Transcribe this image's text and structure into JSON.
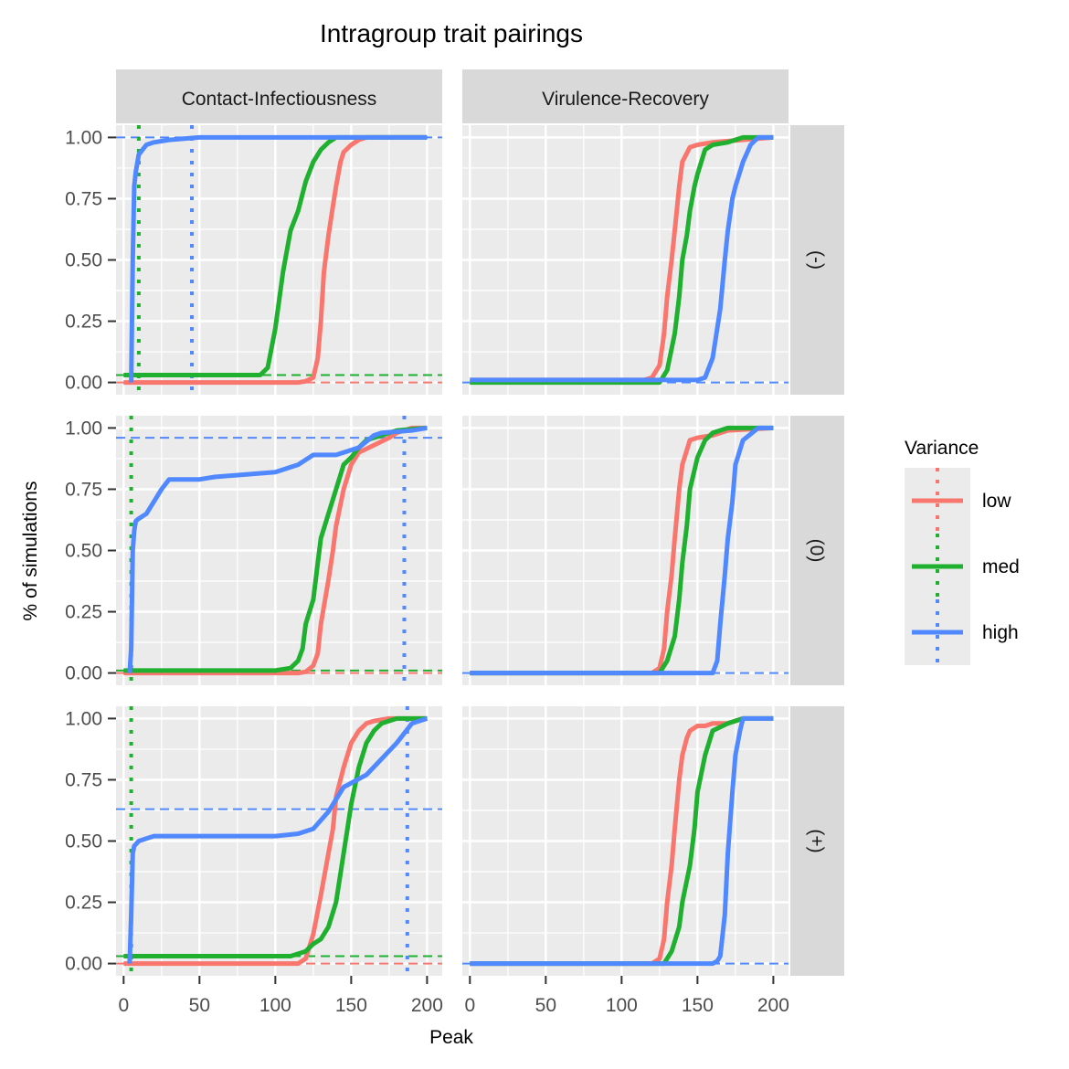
{
  "chart_data": {
    "type": "line",
    "title": "Intragroup trait pairings",
    "xlabel": "Peak",
    "ylabel": "% of simulations",
    "xlim": [
      -5,
      210
    ],
    "ylim": [
      -0.05,
      1.05
    ],
    "x_ticks": [
      0,
      50,
      100,
      150,
      200
    ],
    "x_tick_labels": [
      "0",
      "50",
      "100",
      "150",
      "200"
    ],
    "y_ticks": [
      0,
      0.25,
      0.5,
      0.75,
      1
    ],
    "y_tick_labels": [
      "0.00",
      "0.25",
      "0.50",
      "0.75",
      "1.00"
    ],
    "facet_columns": [
      "Contact-Infectiousness",
      "Virulence-Recovery"
    ],
    "facet_rows": [
      "(-)",
      "(0)",
      "(+)"
    ],
    "legend": {
      "title": "Variance",
      "position": "right",
      "entries": [
        {
          "key": "low",
          "label": "low",
          "color": "#F8766D"
        },
        {
          "key": "med",
          "label": "med",
          "color": "#1EB02E"
        },
        {
          "key": "high",
          "label": "high",
          "color": "#5088FF"
        }
      ]
    },
    "panels": [
      {
        "row": "(-)",
        "column": "Contact-Infectiousness",
        "series": [
          {
            "name": "low",
            "x": [
              0,
              115,
              120,
              125,
              128,
              130,
              132,
              135,
              138,
              140,
              143,
              145,
              150,
              155,
              160,
              200
            ],
            "y": [
              0,
              0,
              0.005,
              0.02,
              0.1,
              0.25,
              0.45,
              0.6,
              0.72,
              0.8,
              0.9,
              0.94,
              0.97,
              0.99,
              1,
              1
            ]
          },
          {
            "name": "med",
            "x": [
              0,
              10,
              90,
              95,
              100,
              105,
              110,
              115,
              120,
              125,
              130,
              135,
              140,
              150,
              200
            ],
            "y": [
              0.03,
              0.03,
              0.03,
              0.06,
              0.22,
              0.45,
              0.62,
              0.7,
              0.82,
              0.9,
              0.95,
              0.98,
              1,
              1,
              1
            ]
          },
          {
            "name": "high",
            "x": [
              5,
              6,
              7,
              8,
              10,
              15,
              20,
              30,
              50,
              100,
              200
            ],
            "y": [
              0,
              0.5,
              0.8,
              0.86,
              0.93,
              0.97,
              0.98,
              0.99,
              1,
              1,
              1
            ]
          }
        ],
        "hlines": [
          {
            "series": "low",
            "y": 0
          },
          {
            "series": "med",
            "y": 0.03
          },
          {
            "series": "high",
            "y": 1
          }
        ],
        "vlines": [
          {
            "series": "med",
            "x": 10
          },
          {
            "series": "high",
            "x": 45
          }
        ]
      },
      {
        "row": "(-)",
        "column": "Virulence-Recovery",
        "series": [
          {
            "name": "low",
            "x": [
              0,
              115,
              120,
              125,
              128,
              130,
              133,
              135,
              138,
              140,
              145,
              150,
              160,
              200
            ],
            "y": [
              0.01,
              0.01,
              0.02,
              0.07,
              0.2,
              0.35,
              0.5,
              0.62,
              0.8,
              0.9,
              0.96,
              0.97,
              0.98,
              1
            ]
          },
          {
            "name": "med",
            "x": [
              0,
              125,
              130,
              135,
              138,
              140,
              143,
              145,
              148,
              150,
              155,
              160,
              170,
              180,
              200
            ],
            "y": [
              0,
              0,
              0.05,
              0.2,
              0.35,
              0.5,
              0.6,
              0.7,
              0.8,
              0.85,
              0.95,
              0.97,
              0.98,
              1,
              1
            ]
          },
          {
            "name": "high",
            "x": [
              0,
              150,
              155,
              160,
              165,
              168,
              170,
              173,
              175,
              180,
              185,
              190,
              200
            ],
            "y": [
              0.01,
              0.01,
              0.02,
              0.1,
              0.3,
              0.5,
              0.62,
              0.75,
              0.8,
              0.9,
              0.97,
              1,
              1
            ]
          }
        ],
        "hlines": [
          {
            "series": "high",
            "y": 0
          }
        ],
        "vlines": []
      },
      {
        "row": "(0)",
        "column": "Contact-Infectiousness",
        "series": [
          {
            "name": "low",
            "x": [
              0,
              115,
              120,
              125,
              128,
              130,
              135,
              138,
              140,
              145,
              150,
              155,
              165,
              175,
              180,
              190,
              200
            ],
            "y": [
              0,
              0,
              0.005,
              0.03,
              0.08,
              0.2,
              0.38,
              0.5,
              0.6,
              0.75,
              0.85,
              0.9,
              0.93,
              0.96,
              0.98,
              1,
              1
            ]
          },
          {
            "name": "med",
            "x": [
              0,
              100,
              110,
              115,
              118,
              120,
              125,
              128,
              130,
              135,
              140,
              145,
              150,
              155,
              160,
              170,
              180,
              200
            ],
            "y": [
              0.01,
              0.01,
              0.02,
              0.05,
              0.1,
              0.2,
              0.3,
              0.45,
              0.55,
              0.65,
              0.75,
              0.85,
              0.88,
              0.92,
              0.95,
              0.97,
              0.99,
              1
            ]
          },
          {
            "name": "high",
            "x": [
              4,
              5,
              6,
              7,
              8,
              10,
              15,
              20,
              25,
              30,
              50,
              60,
              80,
              100,
              115,
              125,
              140,
              155,
              165,
              170,
              190,
              200
            ],
            "y": [
              0,
              0.1,
              0.5,
              0.58,
              0.62,
              0.63,
              0.65,
              0.7,
              0.75,
              0.79,
              0.79,
              0.8,
              0.81,
              0.82,
              0.85,
              0.89,
              0.89,
              0.92,
              0.97,
              0.98,
              0.99,
              1
            ]
          }
        ],
        "hlines": [
          {
            "series": "low",
            "y": 0
          },
          {
            "series": "med",
            "y": 0.01
          },
          {
            "series": "high",
            "y": 0.96
          }
        ],
        "vlines": [
          {
            "series": "med",
            "x": 5
          },
          {
            "series": "high",
            "x": 185
          }
        ]
      },
      {
        "row": "(0)",
        "column": "Virulence-Recovery",
        "series": [
          {
            "name": "low",
            "x": [
              0,
              120,
              125,
              128,
              130,
              133,
              135,
              138,
              140,
              145,
              150,
              160,
              170,
              200
            ],
            "y": [
              0,
              0,
              0.02,
              0.1,
              0.25,
              0.4,
              0.55,
              0.75,
              0.85,
              0.95,
              0.96,
              0.97,
              0.99,
              1
            ]
          },
          {
            "name": "med",
            "x": [
              0,
              125,
              130,
              135,
              138,
              140,
              143,
              145,
              150,
              155,
              160,
              170,
              200
            ],
            "y": [
              0,
              0,
              0.05,
              0.15,
              0.3,
              0.45,
              0.6,
              0.75,
              0.88,
              0.95,
              0.98,
              1,
              1
            ]
          },
          {
            "name": "high",
            "x": [
              0,
              160,
              163,
              165,
              168,
              170,
              173,
              175,
              180,
              190,
              200
            ],
            "y": [
              0,
              0,
              0.05,
              0.2,
              0.4,
              0.55,
              0.7,
              0.85,
              0.95,
              1,
              1
            ]
          }
        ],
        "hlines": [
          {
            "series": "high",
            "y": 0
          }
        ],
        "vlines": []
      },
      {
        "row": "(+)",
        "column": "Contact-Infectiousness",
        "series": [
          {
            "name": "low",
            "x": [
              0,
              115,
              120,
              125,
              130,
              135,
              138,
              140,
              145,
              150,
              155,
              160,
              165,
              175,
              200
            ],
            "y": [
              0,
              0,
              0.02,
              0.12,
              0.28,
              0.45,
              0.55,
              0.68,
              0.8,
              0.9,
              0.95,
              0.98,
              0.99,
              1,
              1
            ]
          },
          {
            "name": "med",
            "x": [
              0,
              110,
              120,
              125,
              130,
              135,
              140,
              145,
              150,
              155,
              160,
              165,
              170,
              180,
              200
            ],
            "y": [
              0.03,
              0.03,
              0.05,
              0.08,
              0.1,
              0.15,
              0.25,
              0.45,
              0.65,
              0.8,
              0.9,
              0.95,
              0.98,
              1,
              1
            ]
          },
          {
            "name": "high",
            "x": [
              4,
              5,
              6,
              7,
              10,
              15,
              20,
              30,
              50,
              100,
              115,
              125,
              135,
              145,
              160,
              180,
              190,
              200
            ],
            "y": [
              0,
              0.2,
              0.45,
              0.48,
              0.5,
              0.51,
              0.52,
              0.52,
              0.52,
              0.52,
              0.53,
              0.55,
              0.62,
              0.72,
              0.77,
              0.9,
              0.98,
              1
            ]
          }
        ],
        "hlines": [
          {
            "series": "low",
            "y": 0
          },
          {
            "series": "med",
            "y": 0.03
          },
          {
            "series": "high",
            "y": 0.63
          }
        ],
        "vlines": [
          {
            "series": "med",
            "x": 5
          },
          {
            "series": "high",
            "x": 187
          }
        ]
      },
      {
        "row": "(+)",
        "column": "Virulence-Recovery",
        "series": [
          {
            "name": "low",
            "x": [
              0,
              120,
              125,
              128,
              130,
              133,
              135,
              138,
              140,
              143,
              145,
              150,
              155,
              160,
              170,
              180,
              200
            ],
            "y": [
              0,
              0,
              0.02,
              0.1,
              0.25,
              0.4,
              0.55,
              0.75,
              0.85,
              0.92,
              0.95,
              0.97,
              0.97,
              0.98,
              0.98,
              1,
              1
            ]
          },
          {
            "name": "med",
            "x": [
              0,
              128,
              133,
              138,
              140,
              145,
              148,
              150,
              155,
              160,
              170,
              180,
              200
            ],
            "y": [
              0,
              0,
              0.05,
              0.15,
              0.25,
              0.4,
              0.55,
              0.7,
              0.85,
              0.95,
              0.98,
              1,
              1
            ]
          },
          {
            "name": "high",
            "x": [
              0,
              160,
              163,
              165,
              168,
              170,
              173,
              175,
              178,
              180,
              200
            ],
            "y": [
              0,
              0,
              0.01,
              0.03,
              0.2,
              0.45,
              0.7,
              0.85,
              0.95,
              1,
              1
            ]
          }
        ],
        "hlines": [
          {
            "series": "high",
            "y": 0
          }
        ],
        "vlines": []
      }
    ]
  }
}
